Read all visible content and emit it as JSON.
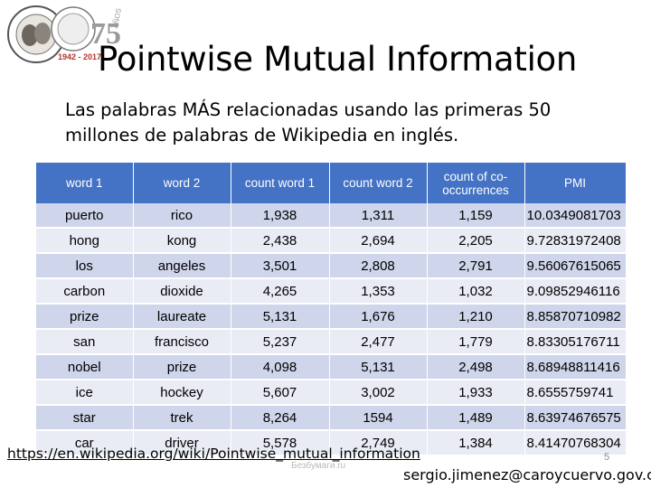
{
  "slide": {
    "title": "Pointwise Mutual Information",
    "subtitle": "Las palabras MÁS relacionadas usando las primeras 50 millones de palabras de Wikipedia en inglés.",
    "logo_text": "VERBUM · LIBERALITAS · FIDES · INSTITUTO CARO Y CUERVO · 75 AÑOS · 1942 - 2017",
    "link": "https://en.wikipedia.org/wiki/Pointwise_mutual_information",
    "watermark": "Безбумаги.ru",
    "email": "sergio.jimenez@caroycuervo.gov.co",
    "page_number": "5"
  },
  "table": {
    "headers": [
      "word 1",
      "word 2",
      "count word 1",
      "count word 2",
      "count of co-occurrences",
      "PMI"
    ],
    "rows": [
      [
        "puerto",
        "rico",
        "1,938",
        "1,311",
        "1,159",
        "10.0349081703"
      ],
      [
        "hong",
        "kong",
        "2,438",
        "2,694",
        "2,205",
        "9.72831972408"
      ],
      [
        "los",
        "angeles",
        "3,501",
        "2,808",
        "2,791",
        "9.56067615065"
      ],
      [
        "carbon",
        "dioxide",
        "4,265",
        "1,353",
        "1,032",
        "9.09852946116"
      ],
      [
        "prize",
        "laureate",
        "5,131",
        "1,676",
        "1,210",
        "8.85870710982"
      ],
      [
        "san",
        "francisco",
        "5,237",
        "2,477",
        "1,779",
        "8.83305176711"
      ],
      [
        "nobel",
        "prize",
        "4,098",
        "5,131",
        "2,498",
        "8.68948811416"
      ],
      [
        "ice",
        "hockey",
        "5,607",
        "3,002",
        "1,933",
        "8.6555759741"
      ],
      [
        "star",
        "trek",
        "8,264",
        "1594",
        "1,489",
        "8.63974676575"
      ],
      [
        "car",
        "driver",
        "5,578",
        "2,749",
        "1,384",
        "8.41470768304"
      ]
    ]
  }
}
